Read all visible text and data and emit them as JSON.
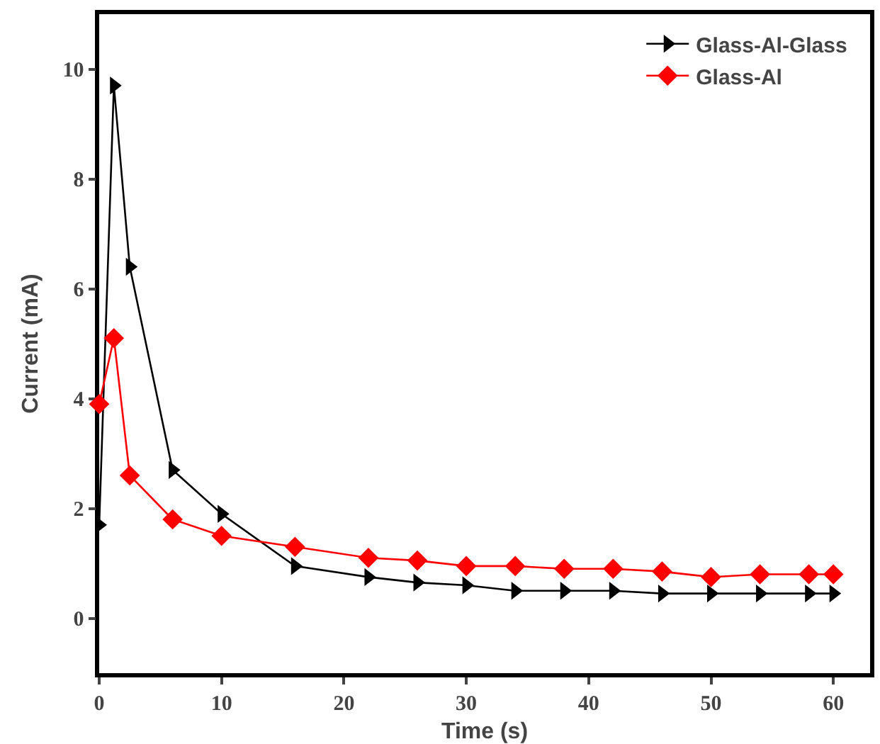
{
  "chart_data": {
    "type": "line",
    "xlabel": "Time (s)",
    "ylabel": "Current (mA)",
    "xlim": [
      0,
      63
    ],
    "xticks": [
      0,
      10,
      20,
      30,
      40,
      50,
      60
    ],
    "ylim": [
      -1,
      11
    ],
    "yticks": [
      0,
      2,
      4,
      6,
      8,
      10
    ],
    "grid": false,
    "legend": "top right",
    "line_style": "solid",
    "series": [
      {
        "name": "Glass-Al-Glass",
        "color": "#000000",
        "marker": "triangle",
        "x": [
          0,
          1.2,
          2.5,
          6,
          10,
          16,
          22,
          26,
          30,
          34,
          38,
          42,
          46,
          50,
          54,
          58,
          60
        ],
        "values": [
          1.7,
          9.7,
          6.4,
          2.7,
          1.9,
          0.95,
          0.75,
          0.65,
          0.6,
          0.5,
          0.5,
          0.5,
          0.45,
          0.45,
          0.45,
          0.45,
          0.45
        ]
      },
      {
        "name": "Glass-Al",
        "color": "#ff0000",
        "marker": "diamond",
        "x": [
          0,
          1.2,
          2.5,
          6,
          10,
          16,
          22,
          26,
          30,
          34,
          38,
          42,
          46,
          50,
          54,
          58,
          60
        ],
        "values": [
          3.9,
          5.1,
          2.6,
          1.8,
          1.5,
          1.3,
          1.1,
          1.05,
          0.95,
          0.95,
          0.9,
          0.9,
          0.85,
          0.75,
          0.8,
          0.8,
          0.8
        ]
      }
    ]
  }
}
